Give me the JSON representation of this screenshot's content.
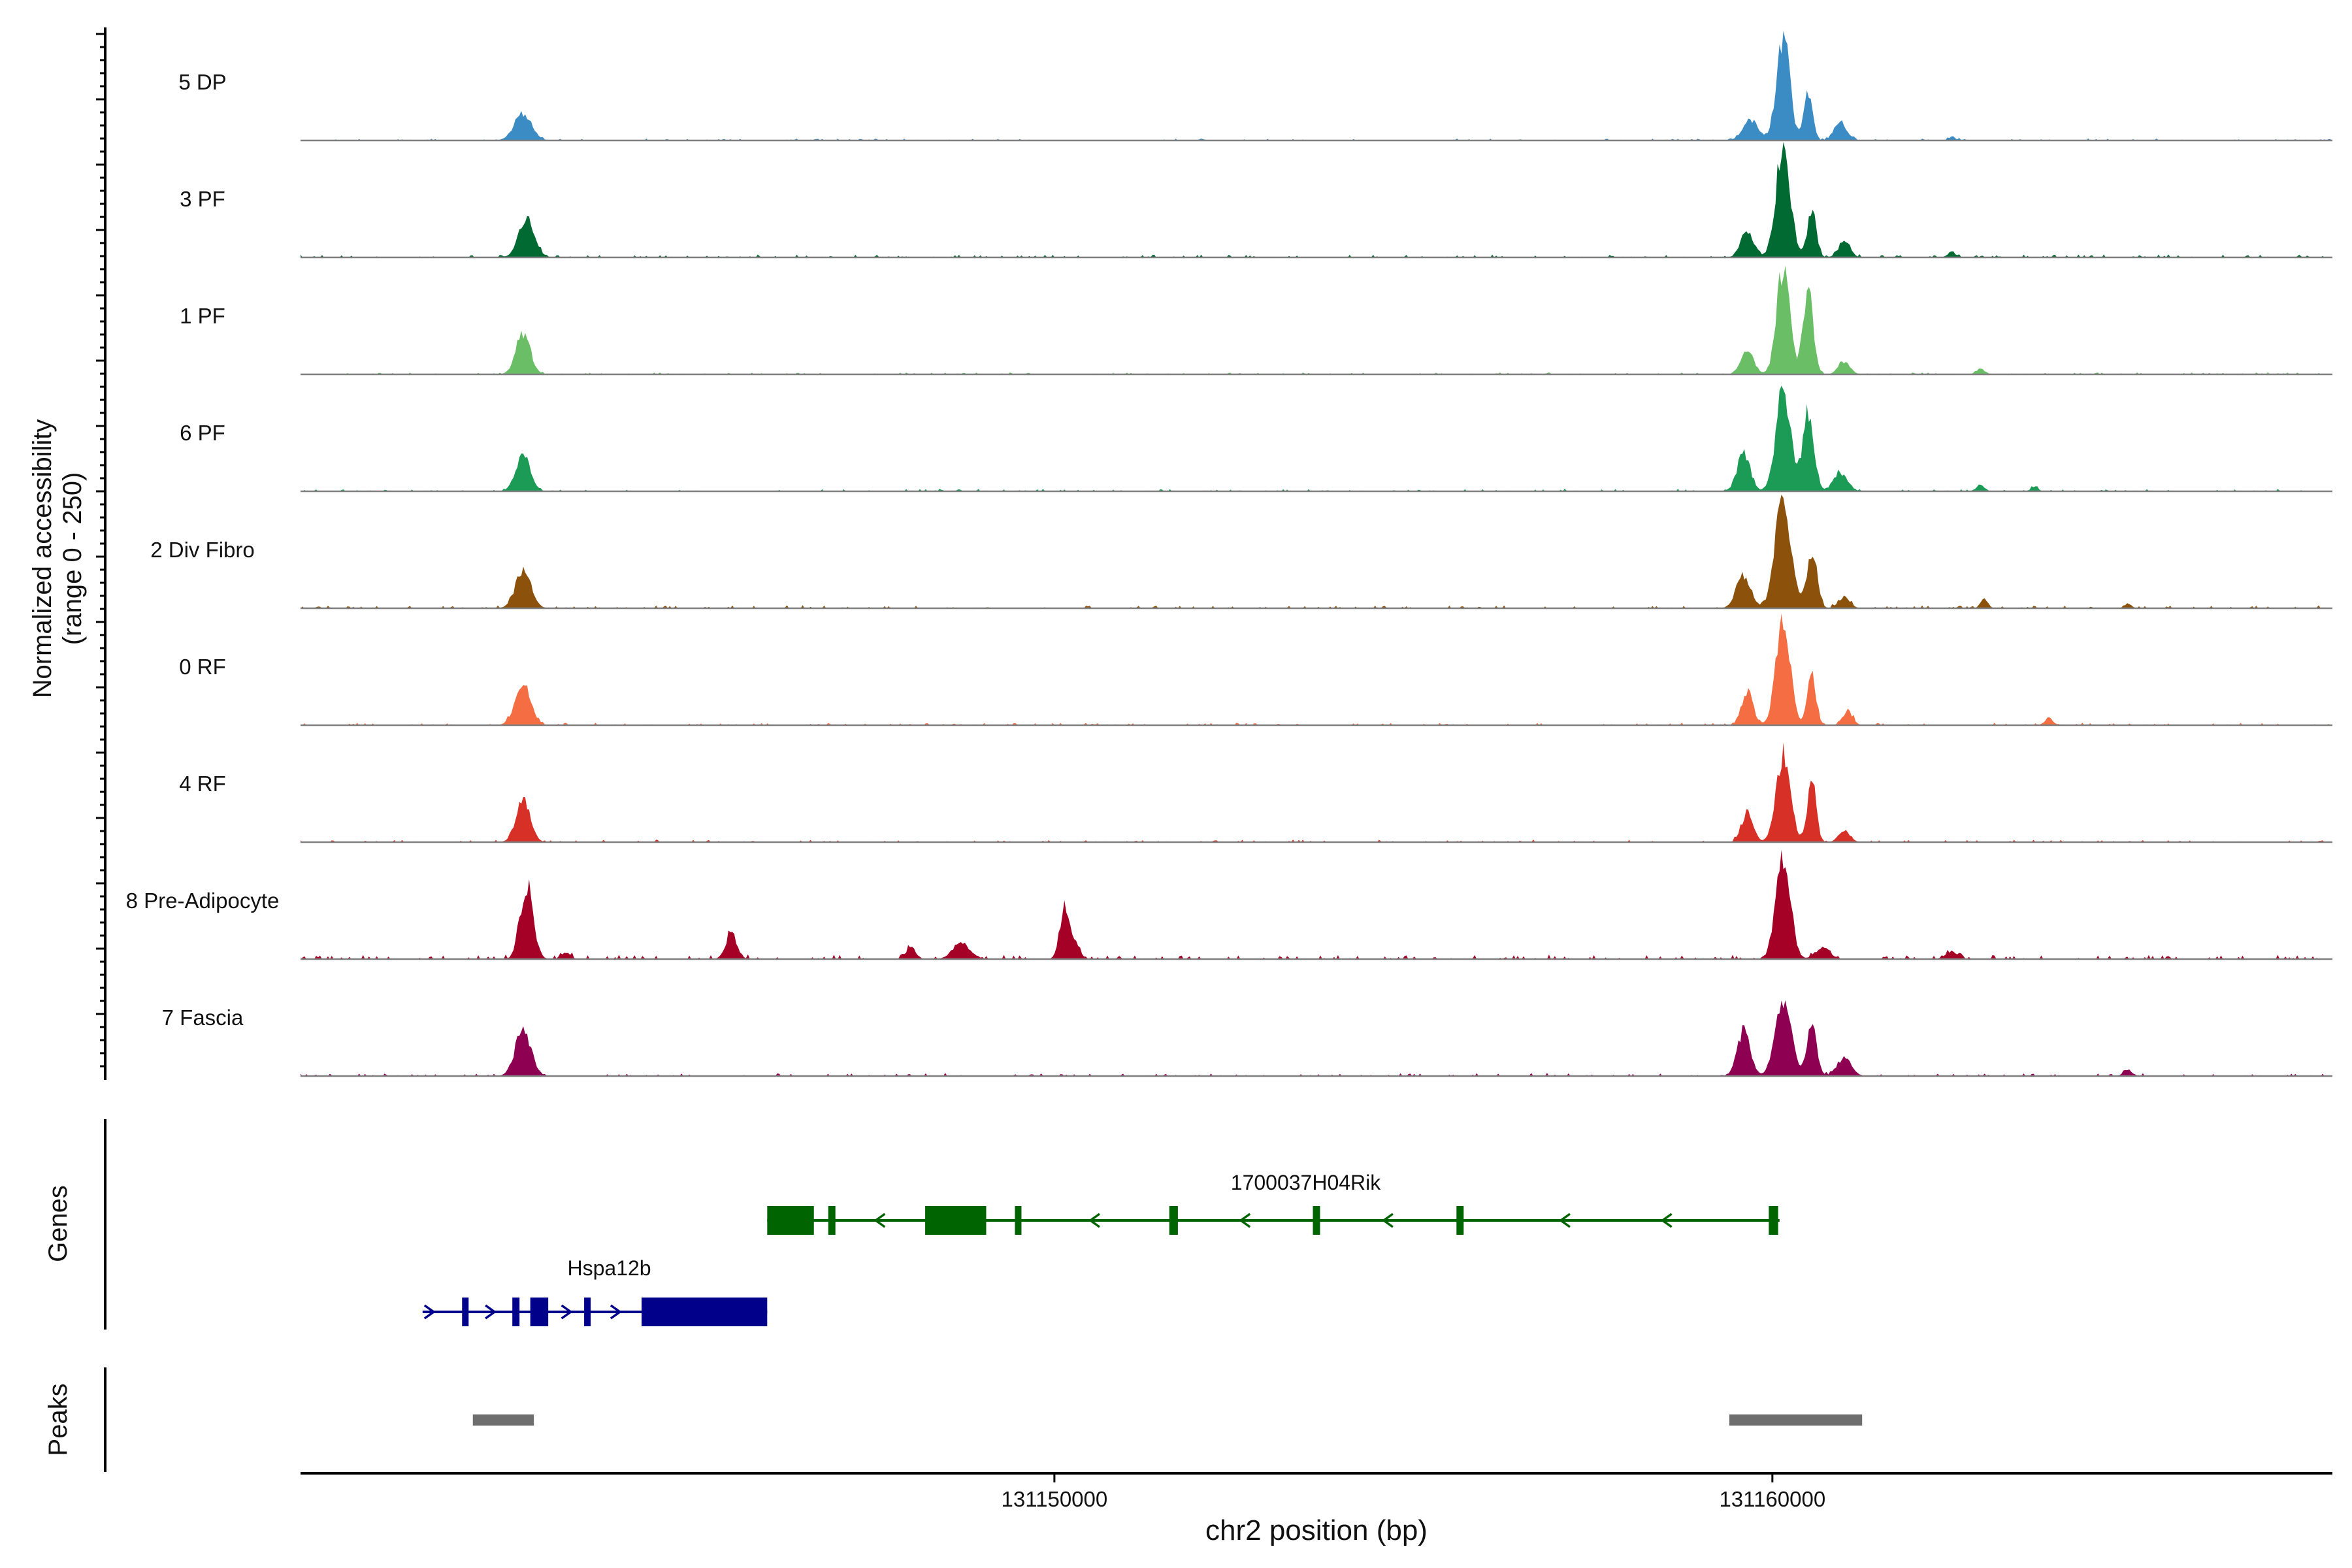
{
  "chart_data": {
    "type": "area",
    "title": "",
    "ylabel": [
      "Normalized accessibility",
      "(range 0 - 250)"
    ],
    "xlabel": "chr2 position (bp)",
    "chromosome": "chr2",
    "xlim": [
      131139500,
      131167800
    ],
    "ylim": [
      0,
      250
    ],
    "x_ticks": [
      131150000,
      131160000
    ],
    "tracks": [
      {
        "name": "5 DP",
        "color": "#3B8CC4",
        "noise": 4,
        "seed": 11,
        "peaks": [
          [
            131142600,
            60,
            120
          ],
          [
            131159700,
            45,
            110
          ],
          [
            131160150,
            235,
            90
          ],
          [
            131160500,
            105,
            60
          ],
          [
            131160950,
            40,
            90
          ],
          [
            131162500,
            8,
            50
          ]
        ]
      },
      {
        "name": "3 PF",
        "color": "#006A32",
        "noise": 6,
        "seed": 23,
        "peaks": [
          [
            131142650,
            85,
            110
          ],
          [
            131159650,
            60,
            90
          ],
          [
            131160150,
            245,
            100
          ],
          [
            131160550,
            110,
            60
          ],
          [
            131161000,
            35,
            80
          ],
          [
            131162500,
            10,
            60
          ]
        ]
      },
      {
        "name": "1 PF",
        "color": "#6ABF66",
        "noise": 4,
        "seed": 37,
        "peaks": [
          [
            131142600,
            90,
            100
          ],
          [
            131159650,
            55,
            90
          ],
          [
            131160150,
            240,
            90
          ],
          [
            131160500,
            190,
            70
          ],
          [
            131161000,
            28,
            80
          ],
          [
            131162900,
            12,
            60
          ]
        ]
      },
      {
        "name": "6 PF",
        "color": "#1B9B55",
        "noise": 5,
        "seed": 41,
        "peaks": [
          [
            131142600,
            80,
            100
          ],
          [
            131159600,
            85,
            90
          ],
          [
            131160150,
            230,
            100
          ],
          [
            131160500,
            170,
            80
          ],
          [
            131160950,
            40,
            100
          ],
          [
            131162900,
            12,
            60
          ],
          [
            131163650,
            10,
            50
          ]
        ]
      },
      {
        "name": "2 Div Fibro",
        "color": "#8C510A",
        "noise": 6,
        "seed": 53,
        "peaks": [
          [
            131142600,
            80,
            110
          ],
          [
            131159600,
            75,
            100
          ],
          [
            131160150,
            245,
            110
          ],
          [
            131160550,
            130,
            70
          ],
          [
            131161000,
            25,
            80
          ],
          [
            131162950,
            20,
            50
          ],
          [
            131164950,
            10,
            50
          ]
        ]
      },
      {
        "name": "0 RF",
        "color": "#F46D43",
        "noise": 5,
        "seed": 61,
        "peaks": [
          [
            131142600,
            90,
            110
          ],
          [
            131159650,
            75,
            80
          ],
          [
            131160150,
            225,
            100
          ],
          [
            131160550,
            110,
            60
          ],
          [
            131161050,
            30,
            70
          ],
          [
            131163850,
            14,
            60
          ]
        ]
      },
      {
        "name": "4 RF",
        "color": "#D73027",
        "noise": 5,
        "seed": 73,
        "peaks": [
          [
            131142600,
            90,
            100
          ],
          [
            131159650,
            65,
            80
          ],
          [
            131160150,
            190,
            100
          ],
          [
            131160550,
            135,
            60
          ],
          [
            131161000,
            25,
            80
          ]
        ]
      },
      {
        "name": "8 Pre-Adipocyte",
        "color": "#A50026",
        "noise": 9,
        "seed": 89,
        "peaks": [
          [
            131142650,
            165,
            90
          ],
          [
            131143200,
            15,
            60
          ],
          [
            131145500,
            55,
            80
          ],
          [
            131148000,
            25,
            70
          ],
          [
            131148700,
            35,
            120
          ],
          [
            131150150,
            115,
            70
          ],
          [
            131150300,
            30,
            60
          ],
          [
            131160150,
            225,
            100
          ],
          [
            131160700,
            25,
            100
          ],
          [
            131162500,
            15,
            90
          ]
        ]
      },
      {
        "name": "7 Fascia",
        "color": "#8E0152",
        "noise": 6,
        "seed": 97,
        "peaks": [
          [
            131142600,
            100,
            110
          ],
          [
            131159600,
            100,
            90
          ],
          [
            131160150,
            170,
            110
          ],
          [
            131160550,
            110,
            70
          ],
          [
            131161000,
            40,
            100
          ],
          [
            131164950,
            14,
            60
          ]
        ]
      }
    ],
    "genes": [
      {
        "name": "1700037H04Rik",
        "strand": "-",
        "start": 131146000,
        "end": 131160100,
        "color": "#006400",
        "exons": [
          [
            131146000,
            131146650
          ],
          [
            131146850,
            131146950
          ],
          [
            131148200,
            131149050
          ],
          [
            131149450,
            131149530
          ],
          [
            131151600,
            131151720
          ],
          [
            131153600,
            131153700
          ],
          [
            131155600,
            131155700
          ],
          [
            131159950,
            131160080
          ]
        ]
      },
      {
        "name": "Hspa12b",
        "strand": "+",
        "start": 131141200,
        "end": 131146000,
        "color": "#00008B",
        "exons": [
          [
            131141750,
            131141830
          ],
          [
            131142450,
            131142550
          ],
          [
            131142700,
            131142950
          ],
          [
            131143450,
            131143520
          ],
          [
            131144250,
            131146000
          ]
        ]
      }
    ],
    "peaks_track": [
      [
        131141900,
        131142750
      ],
      [
        131159400,
        131161250
      ]
    ],
    "panel_labels": {
      "genes": "Genes",
      "peaks": "Peaks"
    }
  }
}
